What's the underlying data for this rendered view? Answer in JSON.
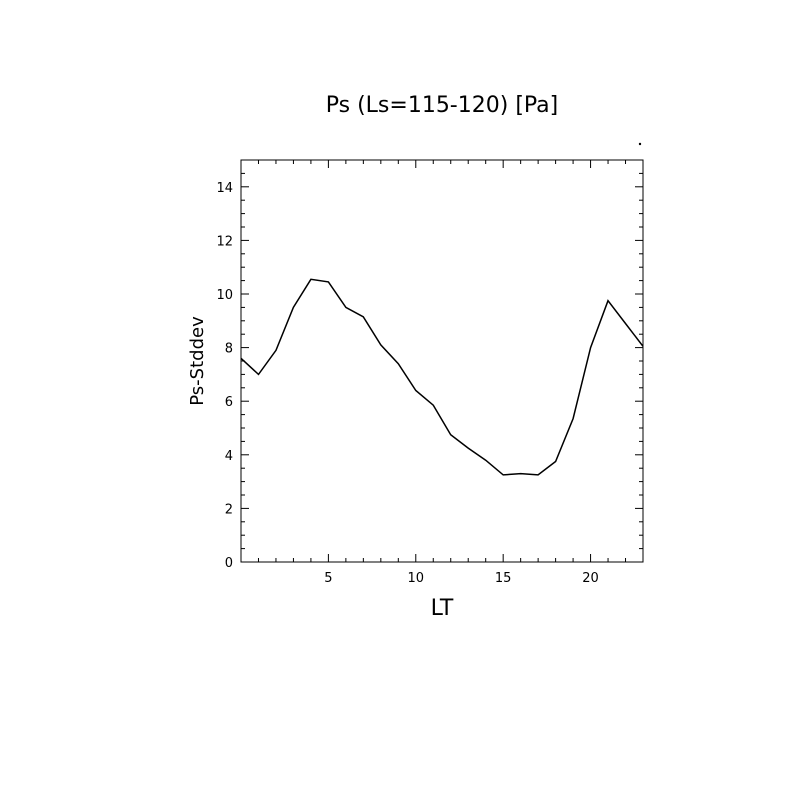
{
  "chart_data": {
    "type": "line",
    "title": "Ps (Ls=115-120) [Pa]",
    "xlabel": "LT",
    "ylabel": "Ps-Stddev",
    "xlim": [
      0,
      23
    ],
    "ylim": [
      0,
      15
    ],
    "xticks": [
      5,
      10,
      15,
      20
    ],
    "yticks": [
      0,
      2,
      4,
      6,
      8,
      10,
      12,
      14
    ],
    "grid": false,
    "series": [
      {
        "x": [
          0,
          1,
          2,
          3,
          4,
          5,
          6,
          7,
          8,
          9,
          10,
          11,
          12,
          13,
          14,
          15,
          16,
          17,
          18,
          19,
          20,
          21,
          22,
          23
        ],
        "y": [
          7.6,
          7.0,
          7.9,
          9.5,
          10.55,
          10.45,
          9.5,
          9.15,
          8.1,
          7.4,
          6.4,
          5.85,
          4.75,
          4.25,
          3.8,
          3.25,
          3.3,
          3.25,
          3.75,
          5.35,
          8.0,
          9.75,
          8.9,
          8.05
        ],
        "color": "#000000"
      }
    ]
  }
}
